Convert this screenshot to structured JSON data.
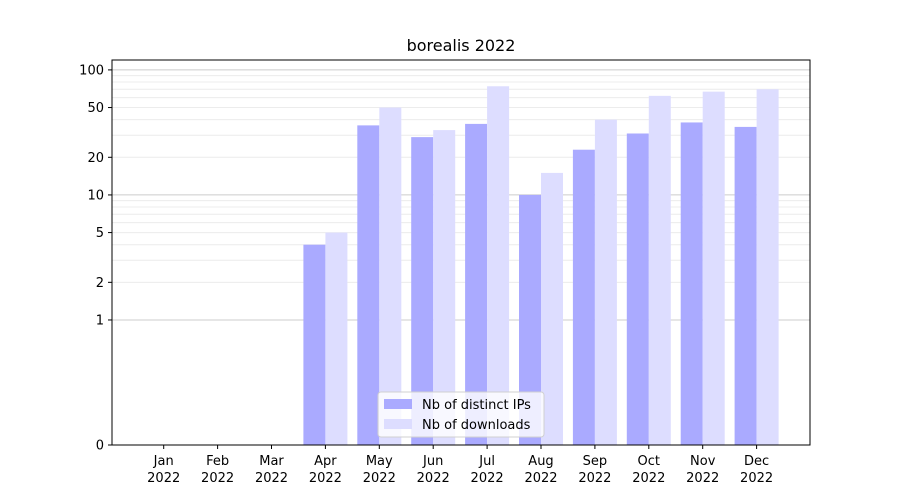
{
  "chart_data": {
    "type": "bar",
    "title": "borealis 2022",
    "xlabel": "",
    "ylabel": "",
    "y_scale": "symlog",
    "ylim": [
      0,
      120
    ],
    "y_ticks": [
      0,
      1,
      2,
      5,
      10,
      20,
      50,
      100
    ],
    "grid": true,
    "legend_position": "bottom-center",
    "categories": [
      [
        "Jan",
        "2022"
      ],
      [
        "Feb",
        "2022"
      ],
      [
        "Mar",
        "2022"
      ],
      [
        "Apr",
        "2022"
      ],
      [
        "May",
        "2022"
      ],
      [
        "Jun",
        "2022"
      ],
      [
        "Jul",
        "2022"
      ],
      [
        "Aug",
        "2022"
      ],
      [
        "Sep",
        "2022"
      ],
      [
        "Oct",
        "2022"
      ],
      [
        "Nov",
        "2022"
      ],
      [
        "Dec",
        "2022"
      ]
    ],
    "series": [
      {
        "name": "Nb of distinct IPs",
        "color": "#aaaaff",
        "values": [
          0,
          0,
          0,
          4,
          36,
          29,
          37,
          10,
          23,
          31,
          38,
          35
        ]
      },
      {
        "name": "Nb of downloads",
        "color": "#ddddff",
        "values": [
          0,
          0,
          0,
          5,
          50,
          33,
          74,
          15,
          40,
          62,
          67,
          70
        ]
      }
    ]
  }
}
